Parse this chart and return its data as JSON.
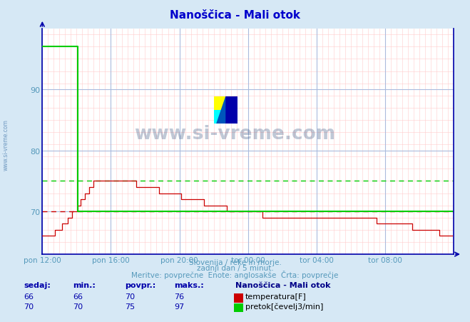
{
  "title": "Nanoščica - Mali otok",
  "title_color": "#0000cc",
  "bg_color": "#d6e8f5",
  "plot_bg_color": "#ffffff",
  "ylabel_ticks": [
    70,
    80,
    90
  ],
  "ylim": [
    63,
    100
  ],
  "xlim": [
    0,
    288
  ],
  "xtick_labels": [
    "pon 12:00",
    "pon 16:00",
    "pon 20:00",
    "tor 00:00",
    "tor 04:00",
    "tor 08:00"
  ],
  "xtick_positions": [
    0,
    48,
    96,
    144,
    192,
    240
  ],
  "temp_color": "#cc0000",
  "flow_color": "#00cc00",
  "temp_avg": 70,
  "flow_avg": 75,
  "footer_line1": "Slovenija / reke in morje.",
  "footer_line2": "zadnji dan / 5 minut.",
  "footer_line3": "Meritve: povprečne  Enote: anglosakše  Črta: povprečje",
  "footer_color": "#5599bb",
  "legend_title": "Nanoščica - Mali otok",
  "table_headers": [
    "sedaj:",
    "min.:",
    "povpr.:",
    "maks.:"
  ],
  "table_temp": [
    "66",
    "66",
    "70",
    "76"
  ],
  "table_flow": [
    "70",
    "70",
    "75",
    "97"
  ],
  "label_temp": "temperatura[F]",
  "label_flow": "pretok[čevelj3/min]",
  "watermark": "www.si-vreme.com",
  "side_text": "www.si-vreme.com",
  "minor_grid_color": "#ffcccc",
  "major_grid_color": "#aabbdd",
  "axis_color": "#0000aa",
  "tick_label_color": "#5599bb"
}
